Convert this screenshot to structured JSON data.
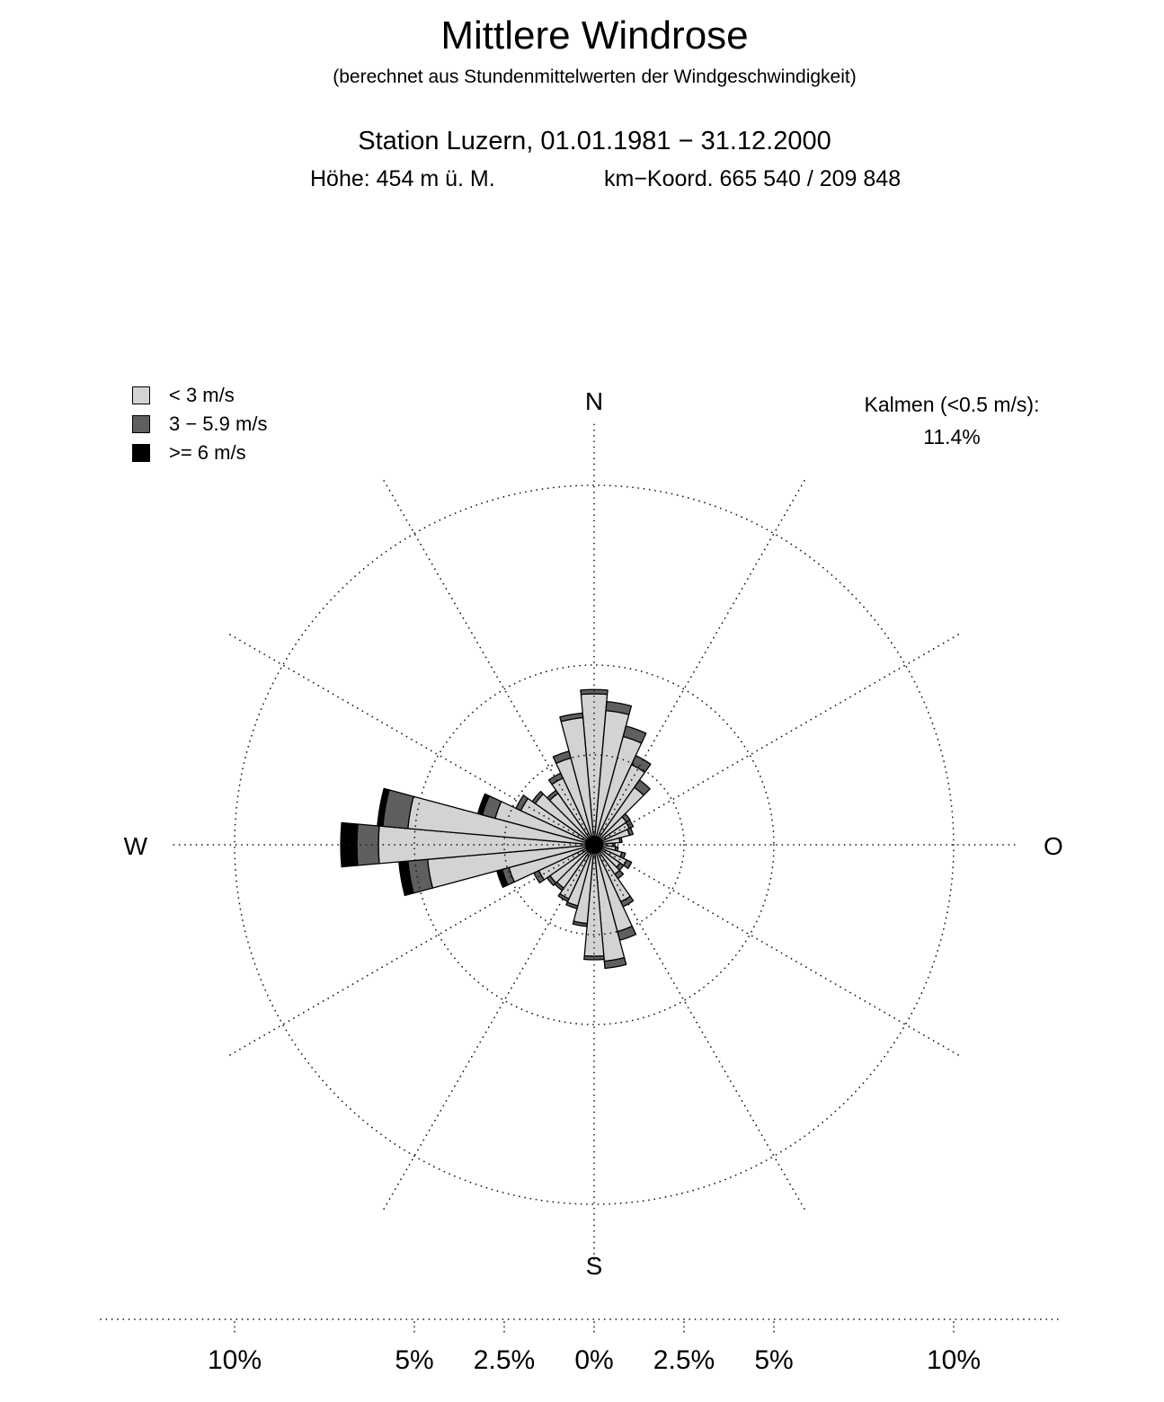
{
  "header": {
    "title": "Mittlere Windrose",
    "subtitle": "(berechnet aus Stundenmittelwerten der Windgeschwindigkeit)",
    "station_line": "Station Luzern,  01.01.1981 − 31.12.2000",
    "altitude": "Höhe: 454 m ü. M.",
    "coordinates": "km−Koord. 665 540 / 209 848"
  },
  "calm": {
    "label": "Kalmen (<0.5 m/s):",
    "value": "11.4%"
  },
  "compass": {
    "north": "N",
    "east": "O",
    "south": "S",
    "west": "W"
  },
  "chart_data": {
    "type": "windrose",
    "units": "percent",
    "angle_step_deg": 10,
    "radial_line_step_deg": 30,
    "rings_percent": [
      2.5,
      5,
      10
    ],
    "axis_tick_percent": [
      -10,
      -5,
      -2.5,
      0,
      2.5,
      5,
      10
    ],
    "axis_tick_labels": [
      "10%",
      "5%",
      "2.5%",
      "0%",
      "2.5%",
      "5%",
      "10%"
    ],
    "calm_percent": 11.4,
    "grid_dotted": true,
    "speed_bins": [
      {
        "label": "< 3 m/s",
        "color": "#d3d3d3"
      },
      {
        "label": "3 − 5.9 m/s",
        "color": "#5f5f5f"
      },
      {
        "label": ">= 6 m/s",
        "color": "#000000"
      }
    ],
    "directions": [
      {
        "deg": 0,
        "values": [
          4.2,
          0.12,
          0
        ]
      },
      {
        "deg": 10,
        "values": [
          3.75,
          0.25,
          0
        ]
      },
      {
        "deg": 20,
        "values": [
          3.12,
          0.3,
          0
        ]
      },
      {
        "deg": 30,
        "values": [
          2.46,
          0.28,
          0
        ]
      },
      {
        "deg": 40,
        "values": [
          1.95,
          0.25,
          0
        ]
      },
      {
        "deg": 50,
        "values": [
          1.1,
          0.12,
          0
        ]
      },
      {
        "deg": 60,
        "values": [
          1.08,
          0.12,
          0
        ]
      },
      {
        "deg": 70,
        "values": [
          1.02,
          0.1,
          0
        ]
      },
      {
        "deg": 80,
        "values": [
          0.72,
          0.06,
          0
        ]
      },
      {
        "deg": 90,
        "values": [
          0.52,
          0.06,
          0
        ]
      },
      {
        "deg": 100,
        "values": [
          0.6,
          0.07,
          0
        ]
      },
      {
        "deg": 110,
        "values": [
          0.8,
          0.1,
          0
        ]
      },
      {
        "deg": 120,
        "values": [
          1.0,
          0.15,
          0
        ]
      },
      {
        "deg": 130,
        "values": [
          0.88,
          0.12,
          0
        ]
      },
      {
        "deg": 140,
        "values": [
          1.0,
          0.15,
          0
        ]
      },
      {
        "deg": 150,
        "values": [
          1.75,
          0.15,
          0
        ]
      },
      {
        "deg": 160,
        "values": [
          2.5,
          0.25,
          0
        ]
      },
      {
        "deg": 170,
        "values": [
          3.25,
          0.2,
          0
        ]
      },
      {
        "deg": 180,
        "values": [
          3.1,
          0.1,
          0
        ]
      },
      {
        "deg": 190,
        "values": [
          2.2,
          0.08,
          0
        ]
      },
      {
        "deg": 200,
        "values": [
          1.76,
          0.08,
          0
        ]
      },
      {
        "deg": 210,
        "values": [
          1.66,
          0.08,
          0
        ]
      },
      {
        "deg": 220,
        "values": [
          1.47,
          0.08,
          0
        ]
      },
      {
        "deg": 230,
        "values": [
          1.5,
          0.1,
          0
        ]
      },
      {
        "deg": 240,
        "values": [
          1.7,
          0.15,
          0
        ]
      },
      {
        "deg": 250,
        "values": [
          2.45,
          0.2,
          0.15
        ]
      },
      {
        "deg": 260,
        "values": [
          4.65,
          0.55,
          0.25
        ]
      },
      {
        "deg": 270,
        "values": [
          6.0,
          0.6,
          0.45
        ]
      },
      {
        "deg": 280,
        "values": [
          5.2,
          0.7,
          0.15
        ]
      },
      {
        "deg": 290,
        "values": [
          2.85,
          0.37,
          0.13
        ]
      },
      {
        "deg": 300,
        "values": [
          2.25,
          0.15,
          0
        ]
      },
      {
        "deg": 310,
        "values": [
          2.0,
          0.1,
          0
        ]
      },
      {
        "deg": 320,
        "values": [
          1.75,
          0.1,
          0
        ]
      },
      {
        "deg": 330,
        "values": [
          2.05,
          0.15,
          0
        ]
      },
      {
        "deg": 340,
        "values": [
          2.5,
          0.2,
          0
        ]
      },
      {
        "deg": 350,
        "values": [
          3.55,
          0.13,
          0
        ]
      }
    ]
  }
}
